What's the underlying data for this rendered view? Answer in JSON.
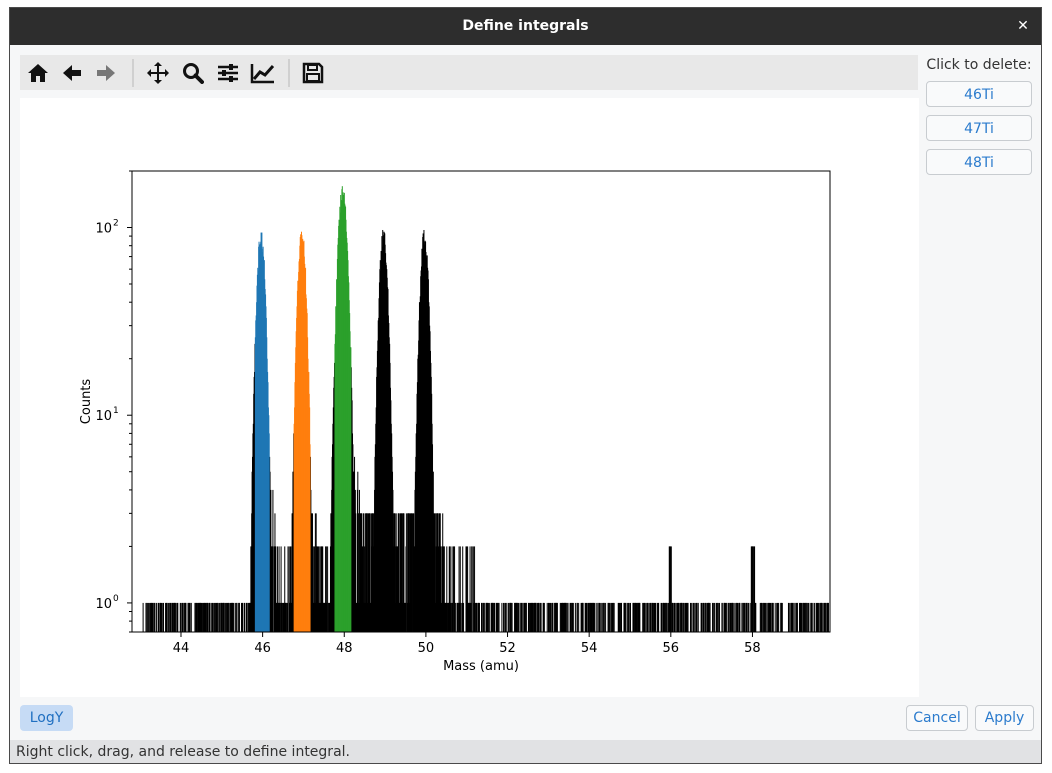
{
  "window": {
    "title": "Define integrals"
  },
  "toolbar": {
    "buttons": [
      {
        "name": "home-icon"
      },
      {
        "name": "back-arrow-icon"
      },
      {
        "name": "forward-arrow-icon"
      },
      {
        "name": "pan-icon"
      },
      {
        "name": "zoom-icon"
      },
      {
        "name": "configure-subplots-icon"
      },
      {
        "name": "edit-axis-icon"
      },
      {
        "name": "save-icon"
      }
    ]
  },
  "side_panel": {
    "label": "Click to delete:",
    "items": [
      "46Ti",
      "47Ti",
      "48Ti"
    ]
  },
  "buttons": {
    "logy": "LogY",
    "cancel": "Cancel",
    "apply": "Apply"
  },
  "status": "Right click, drag, and release to define integral.",
  "chart_data": {
    "type": "bar",
    "xlabel": "Mass (amu)",
    "ylabel": "Counts",
    "yscale": "log",
    "xlim": [
      42.8,
      59.9
    ],
    "ylim": [
      0.7,
      200
    ],
    "x_ticks": [
      44,
      46,
      48,
      50,
      52,
      54,
      56,
      58
    ],
    "y_ticks": [
      {
        "value": 1,
        "label": "10",
        "exp": "0"
      },
      {
        "value": 10,
        "label": "10",
        "exp": "1"
      },
      {
        "value": 100,
        "label": "10",
        "exp": "2"
      }
    ],
    "peaks": [
      {
        "center": 45.95,
        "height": 100,
        "width": 0.09
      },
      {
        "center": 46.95,
        "height": 100,
        "width": 0.09
      },
      {
        "center": 47.95,
        "height": 170,
        "width": 0.1
      },
      {
        "center": 48.95,
        "height": 100,
        "width": 0.09
      },
      {
        "center": 49.95,
        "height": 100,
        "width": 0.09
      }
    ],
    "integrals": [
      {
        "name": "46Ti",
        "range": [
          45.8,
          46.15
        ],
        "color": "#1f77b4"
      },
      {
        "name": "47Ti",
        "range": [
          46.75,
          47.15
        ],
        "color": "#ff7f0e"
      },
      {
        "name": "48Ti",
        "range": [
          47.75,
          48.15
        ],
        "color": "#2ca02c"
      }
    ],
    "base_color": "#000000"
  }
}
